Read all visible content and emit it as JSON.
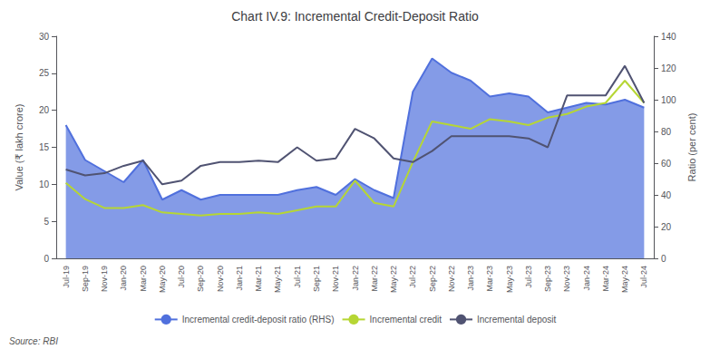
{
  "chart_data": {
    "type": "line",
    "title": "Chart IV.9: Incremental Credit-Deposit Ratio",
    "y_label": "Value (₹ lakh crore)",
    "y2_label": "Ratio (per cent)",
    "annotations": [
      "Source: RBI"
    ],
    "categories": [
      "Jul-19",
      "Sep-19",
      "Nov-19",
      "Jan-20",
      "Mar-20",
      "May-20",
      "Jul-20",
      "Sep-20",
      "Nov-20",
      "Jan-21",
      "Mar-21",
      "May-21",
      "Jul-21",
      "Sep-21",
      "Nov-21",
      "Jan-22",
      "Mar-22",
      "May-22",
      "Jul-22",
      "Sep-22",
      "Nov-22",
      "Jan-23",
      "Mar-23",
      "May-23",
      "Jul-23",
      "Sep-23",
      "Nov-23",
      "Jan-24",
      "Mar-24",
      "May-24",
      "Jul-24"
    ],
    "series": [
      {
        "name": "Incremental credit-deposit ratio (RHS)",
        "type": "area",
        "axis": "y2",
        "values": [
          84.0,
          62.0,
          55.0,
          48.0,
          62.0,
          37.0,
          43.0,
          37.0,
          40.0,
          40.0,
          40.0,
          40.0,
          43.0,
          45.0,
          40.0,
          50.0,
          43.0,
          38.0,
          105.0,
          126.0,
          117.0,
          112.0,
          102.0,
          104.0,
          102.0,
          92.0,
          95.0,
          98.0,
          97.0,
          100.0,
          95.0
        ]
      },
      {
        "name": "Incremental credit",
        "type": "line",
        "values": [
          10.2,
          8.0,
          6.8,
          6.8,
          7.2,
          6.2,
          6.0,
          5.8,
          6.0,
          6.0,
          6.2,
          6.0,
          6.5,
          7.0,
          7.0,
          10.5,
          7.5,
          7.0,
          13.0,
          18.5,
          18.0,
          17.5,
          18.8,
          18.5,
          18.0,
          19.0,
          19.5,
          20.5,
          21.0,
          24.0,
          21.0
        ]
      },
      {
        "name": "Incremental deposit",
        "type": "line",
        "values": [
          12.0,
          11.2,
          11.5,
          12.5,
          13.2,
          10.0,
          10.5,
          12.5,
          13.0,
          13.0,
          13.2,
          13.0,
          15.0,
          13.2,
          13.5,
          17.5,
          16.2,
          13.5,
          13.0,
          14.5,
          16.5,
          16.5,
          16.5,
          16.5,
          16.2,
          15.0,
          22.0,
          22.0,
          22.0,
          26.0,
          21.0
        ]
      }
    ],
    "ylim": [
      0,
      30
    ],
    "yticks": [
      0,
      5,
      10,
      15,
      20,
      25,
      30
    ],
    "y2lim": [
      0,
      140
    ],
    "y2ticks": [
      0,
      20,
      40,
      60,
      80,
      100,
      120,
      140
    ],
    "grid": false,
    "legend": "bottom"
  }
}
